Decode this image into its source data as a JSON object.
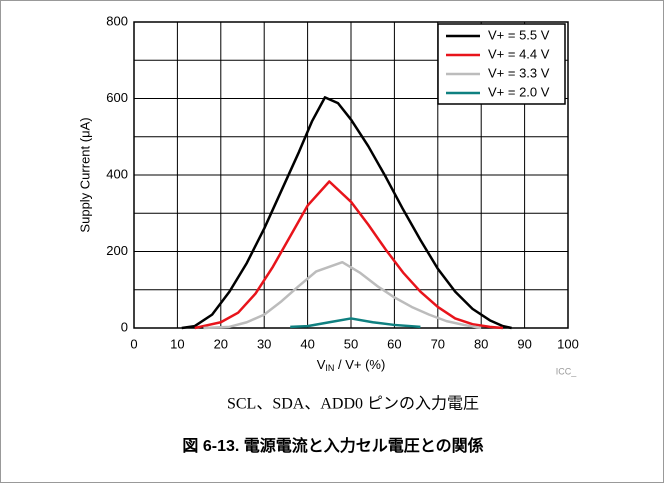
{
  "chart_data": {
    "type": "line",
    "ylabel": "Supply Current (μA)",
    "xlabel": [
      "V",
      "IN",
      " / V+ (%)"
    ],
    "note": "ICC_",
    "caption": "SCL、SDA、ADD0 ピンの入力電圧",
    "figure_title": "図 6-13. 電源電流と入力セル電圧との関係",
    "xlim": [
      0,
      100
    ],
    "xticks": [
      0,
      10,
      20,
      30,
      40,
      50,
      60,
      70,
      80,
      90,
      100
    ],
    "ylim": [
      0,
      800
    ],
    "yticks": [
      0,
      200,
      400,
      600,
      800
    ],
    "ygrid": [
      0,
      100,
      200,
      300,
      400,
      500,
      600,
      700,
      800
    ],
    "grid": true,
    "legend": "upper right",
    "series": [
      {
        "name": "V+ = 5.5 V",
        "color": "#000000",
        "x": [
          11,
          14,
          18,
          22,
          26,
          30,
          34,
          38,
          41,
          44,
          47,
          50,
          54,
          58,
          62,
          66,
          70,
          74,
          78,
          82,
          85,
          87
        ],
        "values": [
          0,
          5,
          35,
          95,
          170,
          260,
          360,
          460,
          540,
          603,
          588,
          545,
          475,
          395,
          310,
          230,
          155,
          95,
          50,
          20,
          5,
          0
        ]
      },
      {
        "name": "V+ = 4.4 V",
        "color": "#e8141b",
        "x": [
          14,
          16,
          20,
          24,
          28,
          32,
          36,
          40,
          45,
          50,
          54,
          58,
          62,
          66,
          70,
          74,
          78,
          82,
          85
        ],
        "values": [
          0,
          5,
          15,
          40,
          90,
          160,
          240,
          320,
          383,
          330,
          270,
          205,
          145,
          95,
          55,
          25,
          10,
          3,
          0
        ]
      },
      {
        "name": "V+ = 3.3 V",
        "color": "#bcbcbc",
        "x": [
          16,
          22,
          26,
          30,
          34,
          38,
          42,
          48,
          52,
          56,
          60,
          64,
          68,
          72,
          76,
          80
        ],
        "values": [
          0,
          3,
          15,
          35,
          70,
          110,
          148,
          172,
          145,
          110,
          80,
          55,
          35,
          18,
          8,
          0
        ]
      },
      {
        "name": "V+ = 2.0 V",
        "color": "#0f8080",
        "x": [
          36,
          40,
          45,
          50,
          55,
          60,
          66
        ],
        "values": [
          3,
          5,
          15,
          25,
          15,
          8,
          3
        ]
      }
    ]
  }
}
